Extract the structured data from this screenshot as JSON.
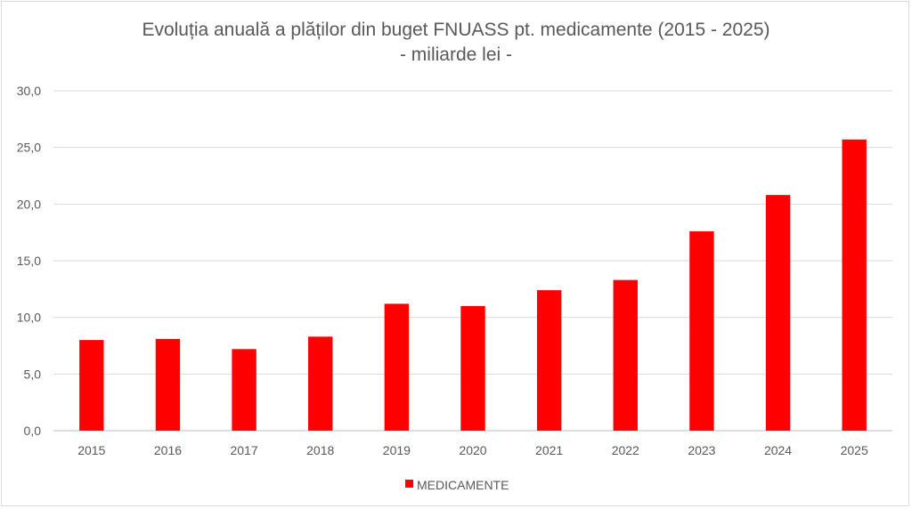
{
  "chart_data": {
    "type": "bar",
    "title": "Evoluția anuală a plăților din buget FNUASS pt. medicamente (2015 - 2025)",
    "subtitle": "- miliarde lei -",
    "categories": [
      "2015",
      "2016",
      "2017",
      "2018",
      "2019",
      "2020",
      "2021",
      "2022",
      "2023",
      "2024",
      "2025"
    ],
    "series": [
      {
        "name": "MEDICAMENTE",
        "values": [
          8.0,
          8.1,
          7.2,
          8.3,
          11.2,
          11.0,
          12.4,
          13.3,
          17.6,
          20.8,
          25.7
        ],
        "color": "#ff0000"
      }
    ],
    "ylim": [
      0,
      30
    ],
    "yticks": [
      "0,0",
      "5,0",
      "10,0",
      "15,0",
      "20,0",
      "25,0",
      "30,0"
    ],
    "grid": true,
    "legend_position": "bottom",
    "gridline_color": "#d9d9d9"
  }
}
